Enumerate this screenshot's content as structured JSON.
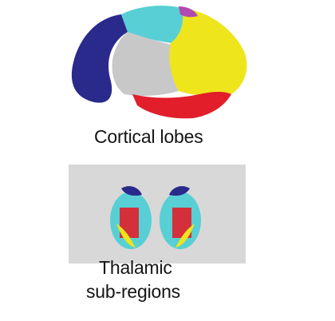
{
  "panels": {
    "cortical": {
      "label": "Cortical lobes"
    },
    "thalamic": {
      "label_line1": "Thalamic",
      "label_line2": "sub-regions"
    }
  },
  "colors": {
    "frontal": "#2a2a8c",
    "parietal_top": "#58cfd4",
    "occipital": "#efe51c",
    "temporal": "#e11e2a",
    "cingulate": "#c8c8c8",
    "accent_magenta": "#b04ab0",
    "slice_bg": "#d8d8d8"
  }
}
